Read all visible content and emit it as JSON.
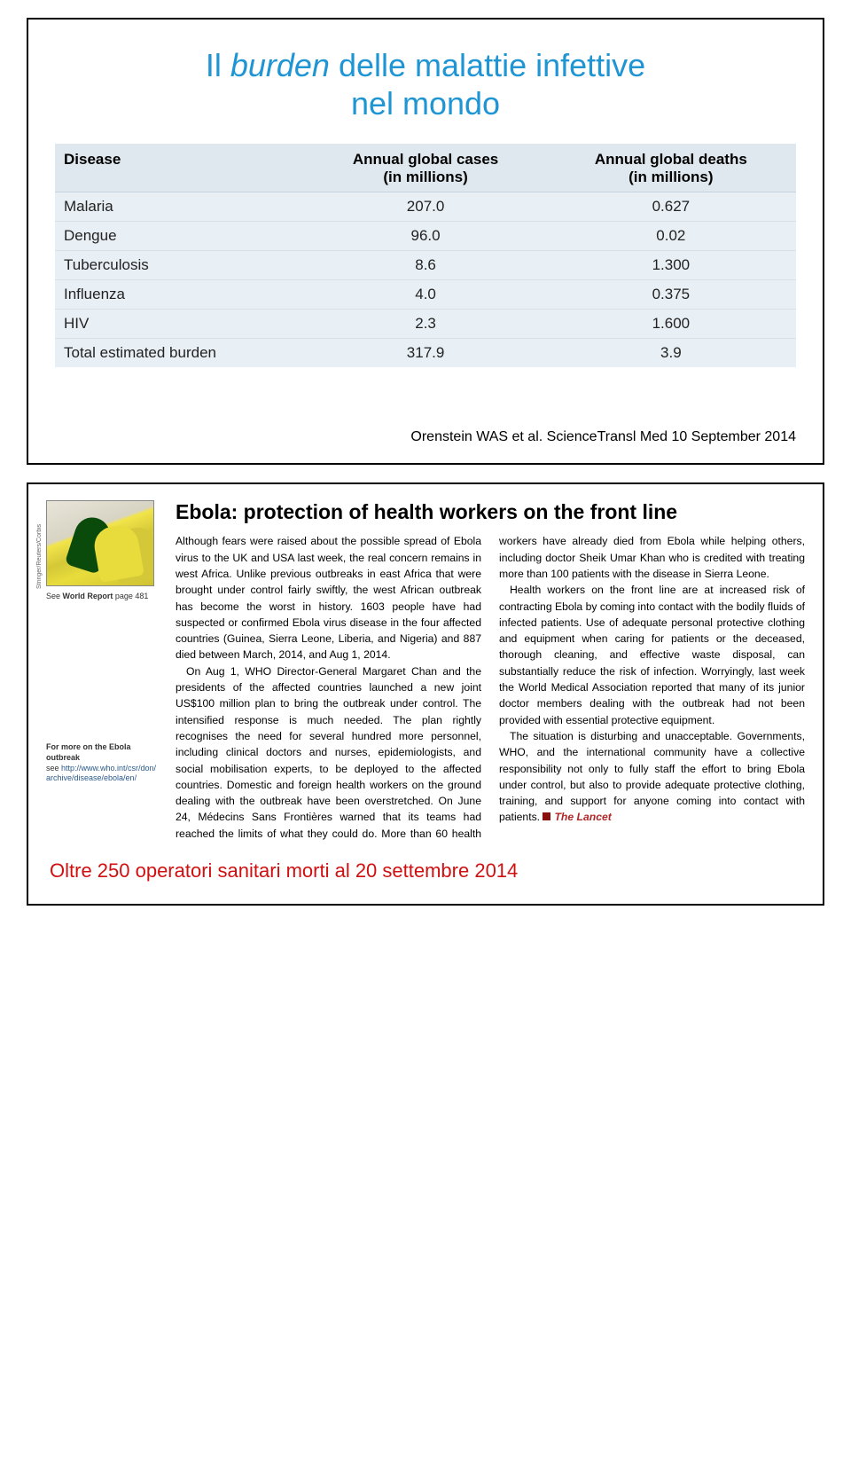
{
  "slide1": {
    "title_pre": "Il ",
    "title_em": "burden",
    "title_post": " delle malattie infettive",
    "title_line2": "nel mondo",
    "title_color": "#1f95d4",
    "table": {
      "header_bg": "#dfe8ef",
      "row_bg": "#e9f0f5",
      "columns": [
        {
          "label": "Disease",
          "align": "left"
        },
        {
          "label": "Annual global cases",
          "sub": "(in millions)",
          "align": "center"
        },
        {
          "label": "Annual global deaths",
          "sub": "(in millions)",
          "align": "center"
        }
      ],
      "rows": [
        [
          "Malaria",
          "207.0",
          "0.627"
        ],
        [
          "Dengue",
          "96.0",
          "0.02"
        ],
        [
          "Tuberculosis",
          "8.6",
          "1.300"
        ],
        [
          "Influenza",
          "4.0",
          "0.375"
        ],
        [
          "HIV",
          "2.3",
          "1.600"
        ],
        [
          "Total estimated burden",
          "317.9",
          "3.9"
        ]
      ]
    },
    "citation": "Orenstein WAS et al. ScienceTransl Med 10 September 2014"
  },
  "slide2": {
    "article_title": "Ebola: protection of health workers on the front line",
    "image_credit": "Stringer/Reuters/Corbis",
    "see_world": "See World Report page 481",
    "more_ebola_hd": "For more on the Ebola outbreak",
    "more_ebola_txt": "see http://www.who.int/csr/don/archive/disease/ebola/en/",
    "para1": "Although fears were raised about the possible spread of Ebola virus to the UK and USA last week, the real concern remains in west Africa. Unlike previous outbreaks in east Africa that were brought under control fairly swiftly, the west African outbreak has become the worst in history. 1603 people have had suspected or confirmed Ebola virus disease in the four affected countries (Guinea, Sierra Leone, Liberia, and Nigeria) and 887 died between March, 2014, and Aug 1, 2014.",
    "para2": "On Aug 1, WHO Director-General Margaret Chan and the presidents of the affected countries launched a new joint US$100 million plan to bring the outbreak under control. The intensified response is much needed. The plan rightly recognises the need for several hundred more personnel, including clinical doctors and nurses, epidemiologists, and social mobilisation experts, to be deployed to the affected countries. Domestic and foreign health workers on the ground dealing with the outbreak have been overstretched. On June 24, Médecins Sans Frontières warned that its teams had reached the limits of what they could do. More than 60 health workers have already died from Ebola while helping others, including doctor Sheik Umar Khan who is credited with treating more than 100 patients with the disease in Sierra Leone.",
    "para3": "Health workers on the front line are at increased risk of contracting Ebola by coming into contact with the bodily fluids of infected patients. Use of adequate personal protective clothing and equipment when caring for patients or the deceased, thorough cleaning, and effective waste disposal, can substantially reduce the risk of infection. Worryingly, last week the World Medical Association reported that many of its junior doctor members dealing with the outbreak had not been provided with essential protective equipment.",
    "para4": "The situation is disturbing and unacceptable. Governments, WHO, and the international community have a collective responsibility not only to fully staff the effort to bring Ebola under control, but also to provide adequate protective clothing, training, and support for anyone coming into contact with patients.",
    "signature": "The Lancet",
    "footnote": "Oltre 250 operatori sanitari morti al 20 settembre 2014",
    "footnote_color": "#d01010"
  }
}
